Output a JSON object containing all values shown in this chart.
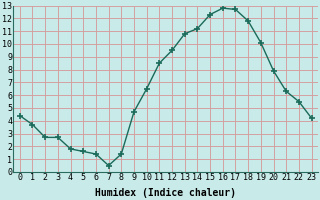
{
  "x": [
    0,
    1,
    2,
    3,
    4,
    5,
    6,
    7,
    8,
    9,
    10,
    11,
    12,
    13,
    14,
    15,
    16,
    17,
    18,
    19,
    20,
    21,
    22,
    23
  ],
  "y": [
    4.4,
    3.7,
    2.7,
    2.7,
    1.8,
    1.6,
    1.4,
    0.5,
    1.4,
    4.7,
    6.5,
    8.5,
    9.5,
    10.8,
    11.2,
    12.3,
    12.8,
    12.7,
    11.8,
    10.1,
    7.9,
    6.3,
    5.5,
    4.2
  ],
  "line_color": "#1a6b5a",
  "marker": "+",
  "marker_size": 4,
  "bg_color": "#c8eae8",
  "grid_color": "#d4a0a0",
  "xlabel": "Humidex (Indice chaleur)",
  "xlim": [
    -0.5,
    23.5
  ],
  "ylim": [
    0,
    13
  ],
  "xticks": [
    0,
    1,
    2,
    3,
    4,
    5,
    6,
    7,
    8,
    9,
    10,
    11,
    12,
    13,
    14,
    15,
    16,
    17,
    18,
    19,
    20,
    21,
    22,
    23
  ],
  "yticks": [
    0,
    1,
    2,
    3,
    4,
    5,
    6,
    7,
    8,
    9,
    10,
    11,
    12,
    13
  ],
  "xlabel_fontsize": 7,
  "tick_fontsize": 6
}
